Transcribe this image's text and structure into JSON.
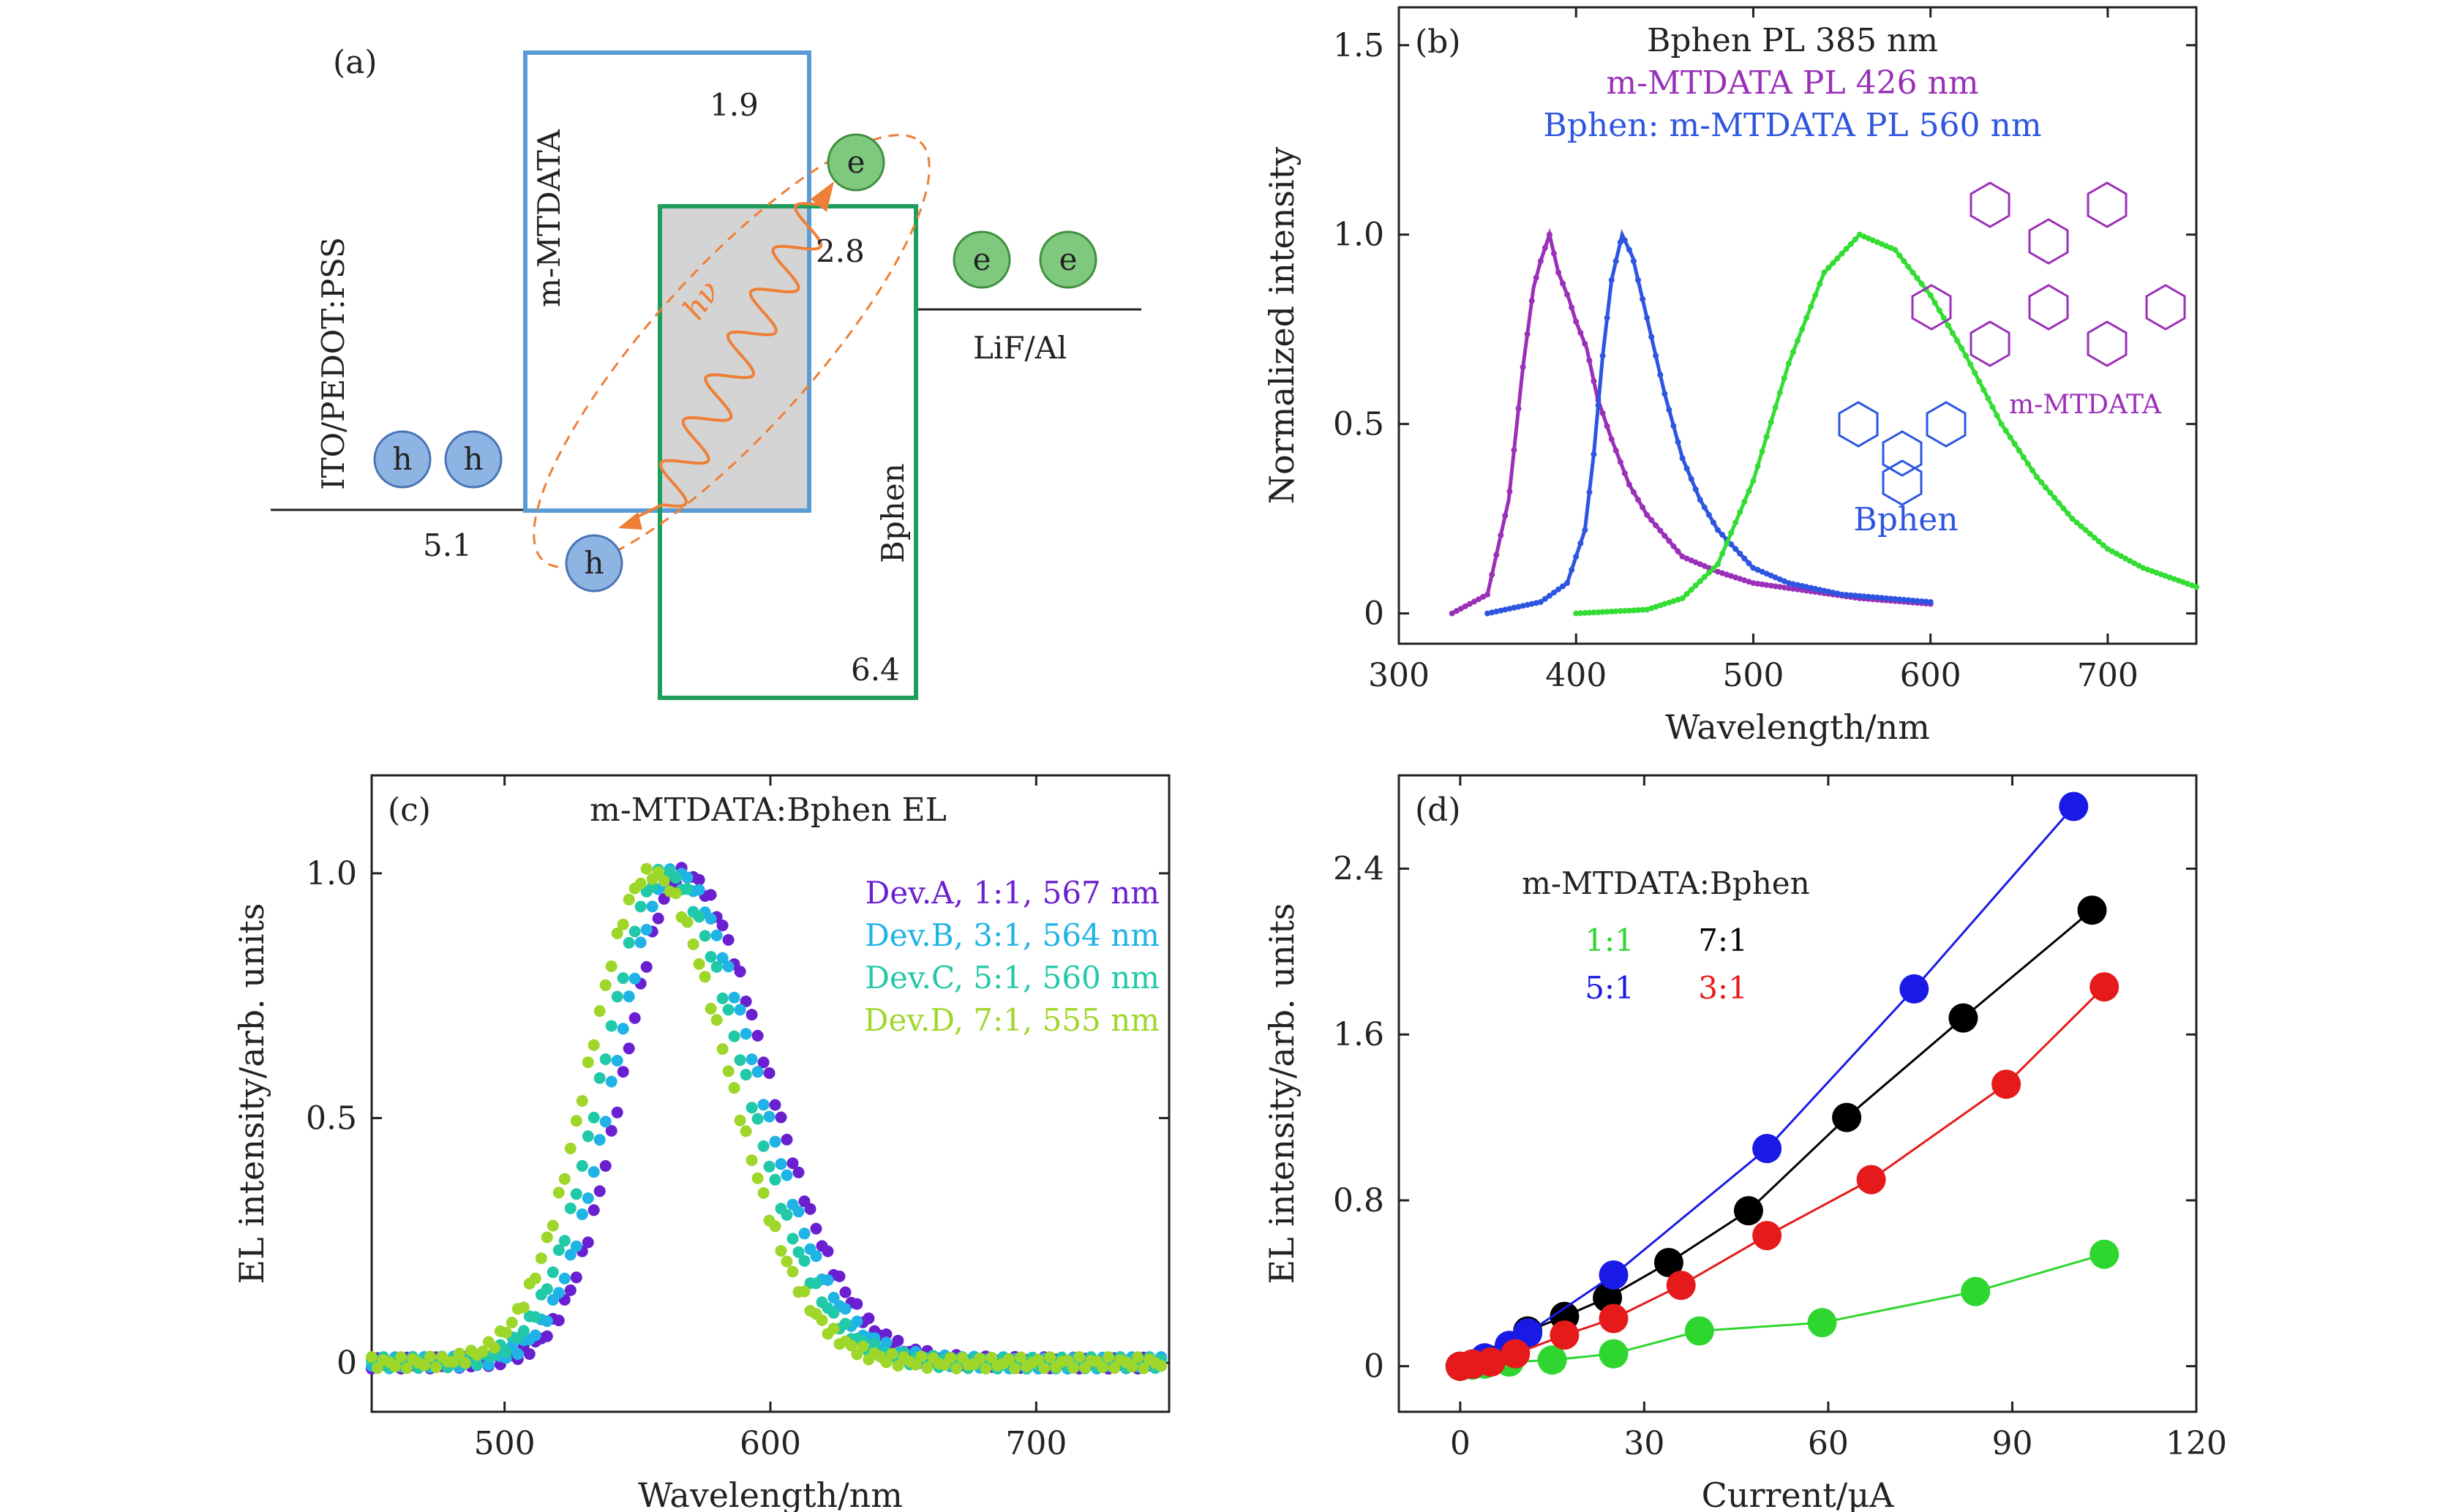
{
  "colors": {
    "purple": "#9b30b8",
    "blue": "#2d55e0",
    "green": "#33dd33",
    "devA": "#6a1fd1",
    "devB": "#1fb3e6",
    "devC": "#22c9a8",
    "devD": "#9ed62a",
    "d_green": "#2fd62f",
    "d_black": "#000000",
    "d_blue": "#1a1ae6",
    "d_red": "#e61a1a",
    "mtdata_box": "#5b9bd5",
    "bphen_box": "#1e9e5a",
    "arrow": "#ee7f36"
  },
  "panel_a": {
    "label": "(a)",
    "ito_label": "ITO/PEDOT:PSS",
    "mtdata_label": "m-MTDATA",
    "bphen_label": "Bphen",
    "lif_label": "LiF/Al",
    "hv_label": "hν",
    "e_label": "e",
    "h_label": "h",
    "levels": {
      "lumo_mtdata": "1.9",
      "lumo_bphen": "2.8",
      "homo_mtdata": "5.1",
      "homo_bphen": "6.4"
    }
  },
  "chart_data": [
    {
      "panel": "(b)",
      "type": "line",
      "title_lines": [
        "Bphen  PL  385 nm",
        "m-MTDATA PL  426 nm",
        "Bphen: m-MTDATA PL  560 nm"
      ],
      "xlabel": "Wavelength/nm",
      "ylabel": "Normalized intensity",
      "xlim": [
        300,
        750
      ],
      "ylim": [
        -0.08,
        1.6
      ],
      "xticks": [
        300,
        400,
        500,
        600,
        700
      ],
      "yticks": [
        0,
        0.5,
        1.0,
        1.5
      ],
      "ytick_labels": [
        "0",
        "0.5",
        "1.0",
        "1.5"
      ],
      "structure_labels": [
        "m-MTDATA",
        "Bphen"
      ],
      "series": [
        {
          "x": [
            330,
            350,
            362,
            370,
            376,
            380,
            385,
            390,
            396,
            400,
            406,
            412,
            420,
            430,
            440,
            460,
            480,
            500,
            530,
            560,
            600
          ],
          "values": [
            0.0,
            0.05,
            0.3,
            0.65,
            0.86,
            0.93,
            1.0,
            0.9,
            0.83,
            0.77,
            0.7,
            0.57,
            0.46,
            0.34,
            0.26,
            0.15,
            0.11,
            0.08,
            0.06,
            0.04,
            0.025
          ]
        },
        {
          "x": [
            350,
            380,
            395,
            405,
            410,
            415,
            420,
            426,
            432,
            440,
            450,
            460,
            470,
            480,
            500,
            520,
            550,
            600
          ],
          "values": [
            0.0,
            0.03,
            0.08,
            0.22,
            0.42,
            0.68,
            0.88,
            1.0,
            0.94,
            0.78,
            0.58,
            0.41,
            0.3,
            0.22,
            0.12,
            0.08,
            0.05,
            0.03
          ]
        },
        {
          "x": [
            400,
            440,
            460,
            480,
            500,
            520,
            540,
            560,
            580,
            600,
            620,
            640,
            660,
            680,
            700,
            720,
            750
          ],
          "values": [
            0.0,
            0.01,
            0.04,
            0.13,
            0.35,
            0.66,
            0.9,
            1.0,
            0.96,
            0.84,
            0.68,
            0.5,
            0.36,
            0.25,
            0.17,
            0.12,
            0.07
          ]
        }
      ]
    },
    {
      "panel": "(c)",
      "type": "scatter",
      "title": "m-MTDATA:Bphen EL",
      "xlabel": "Wavelength/nm",
      "ylabel": "EL intensity/arb. units",
      "xlim": [
        450,
        750
      ],
      "ylim": [
        -0.1,
        1.2
      ],
      "xticks": [
        500,
        600,
        700
      ],
      "yticks": [
        0,
        0.5,
        1.0
      ],
      "ytick_labels": [
        "0",
        "0.5",
        "1.0"
      ],
      "series": [
        {
          "name": "Dev.A, 1:1, 567 nm",
          "peak": 567,
          "width_left": 36,
          "width_right": 52
        },
        {
          "name": "Dev.B, 3:1, 564 nm",
          "peak": 564,
          "width_left": 37,
          "width_right": 50
        },
        {
          "name": "Dev.C, 5:1, 560 nm",
          "peak": 560,
          "width_left": 38,
          "width_right": 49
        },
        {
          "name": "Dev.D, 7:1, 555 nm",
          "peak": 555,
          "width_left": 39,
          "width_right": 48
        }
      ]
    },
    {
      "panel": "(d)",
      "type": "line",
      "legend_title": "m-MTDATA:Bphen",
      "xlabel": "Current/μA",
      "ylabel": "EL intensity/arb. units",
      "xlim": [
        -10,
        120
      ],
      "ylim": [
        -0.22,
        2.85
      ],
      "xticks": [
        0,
        30,
        60,
        90,
        120
      ],
      "yticks": [
        0,
        0.8,
        1.6,
        2.4
      ],
      "ytick_labels": [
        "0",
        "0.8",
        "1.6",
        "2.4"
      ],
      "series": [
        {
          "name": "1:1",
          "x": [
            0,
            2,
            4,
            8,
            15,
            25,
            39,
            59,
            84,
            105
          ],
          "values": [
            0,
            0.005,
            0.01,
            0.02,
            0.03,
            0.06,
            0.17,
            0.21,
            0.36,
            0.54
          ]
        },
        {
          "name": "7:1",
          "x": [
            0,
            2,
            5,
            8,
            11,
            17,
            24,
            34,
            47,
            63,
            82,
            103
          ],
          "values": [
            0,
            0.01,
            0.03,
            0.08,
            0.17,
            0.24,
            0.33,
            0.5,
            0.75,
            1.2,
            1.68,
            2.2
          ]
        },
        {
          "name": "5:1",
          "x": [
            0,
            2,
            4,
            8,
            11,
            25,
            50,
            74,
            100
          ],
          "values": [
            0,
            0.01,
            0.04,
            0.1,
            0.16,
            0.44,
            1.05,
            1.82,
            2.7
          ]
        },
        {
          "name": "3:1",
          "x": [
            0,
            2,
            5,
            9,
            17,
            25,
            36,
            50,
            67,
            89,
            105
          ],
          "values": [
            0,
            0.01,
            0.02,
            0.06,
            0.15,
            0.23,
            0.39,
            0.63,
            0.9,
            1.36,
            1.83
          ]
        }
      ]
    }
  ]
}
